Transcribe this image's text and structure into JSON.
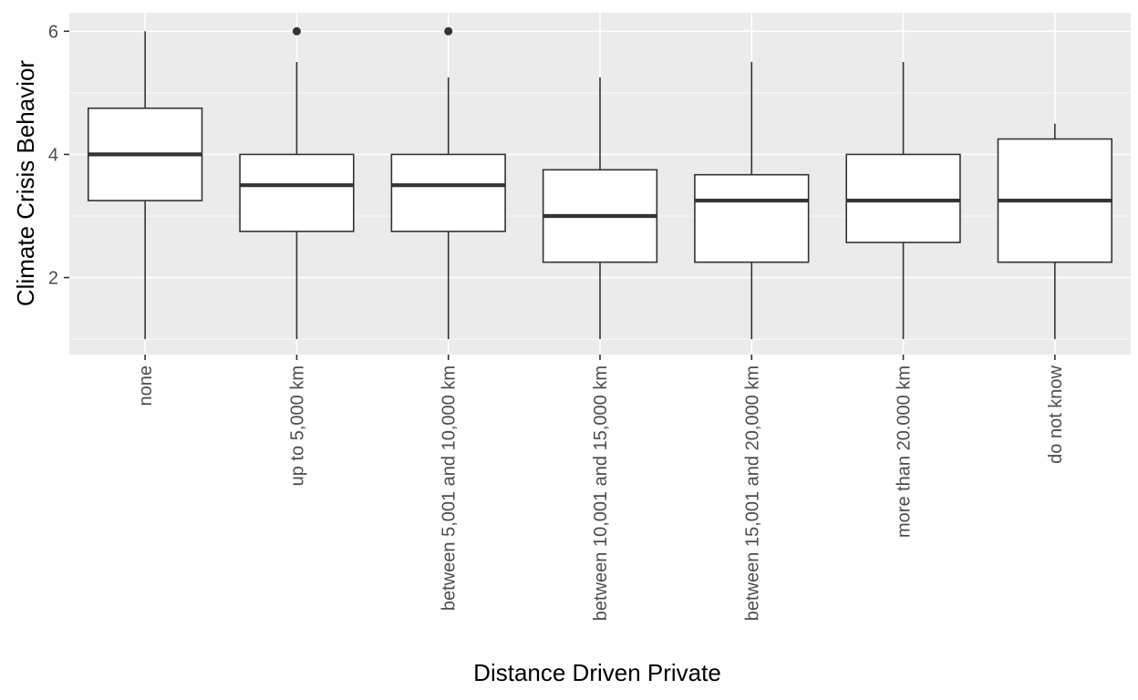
{
  "chart_data": {
    "type": "box",
    "xlabel": "Distance Driven Private",
    "ylabel": "Climate Crisis Behavior",
    "ylim": [
      0.75,
      6.3
    ],
    "yticks": [
      2,
      4,
      6
    ],
    "grid": true,
    "categories": [
      "none",
      "up to 5,000 km",
      "between 5,001 and 10,000 km",
      "between 10,001 and 15,000 km",
      "between 15,001 and 20,000 km",
      "more than 20.000 km",
      "do not know"
    ],
    "boxes": [
      {
        "min": 1.0,
        "q1": 3.25,
        "median": 4.0,
        "q3": 4.75,
        "max": 6.0,
        "outliers": []
      },
      {
        "min": 1.0,
        "q1": 2.75,
        "median": 3.5,
        "q3": 4.0,
        "max": 5.5,
        "outliers": [
          6.0
        ]
      },
      {
        "min": 1.0,
        "q1": 2.75,
        "median": 3.5,
        "q3": 4.0,
        "max": 5.25,
        "outliers": [
          6.0
        ]
      },
      {
        "min": 1.0,
        "q1": 2.25,
        "median": 3.0,
        "q3": 3.75,
        "max": 5.25,
        "outliers": []
      },
      {
        "min": 1.0,
        "q1": 2.25,
        "median": 3.25,
        "q3": 3.67,
        "max": 5.5,
        "outliers": []
      },
      {
        "min": 1.0,
        "q1": 2.57,
        "median": 3.25,
        "q3": 4.0,
        "max": 5.5,
        "outliers": []
      },
      {
        "min": 1.0,
        "q1": 2.25,
        "median": 3.25,
        "q3": 4.25,
        "max": 4.5,
        "outliers": []
      }
    ]
  }
}
